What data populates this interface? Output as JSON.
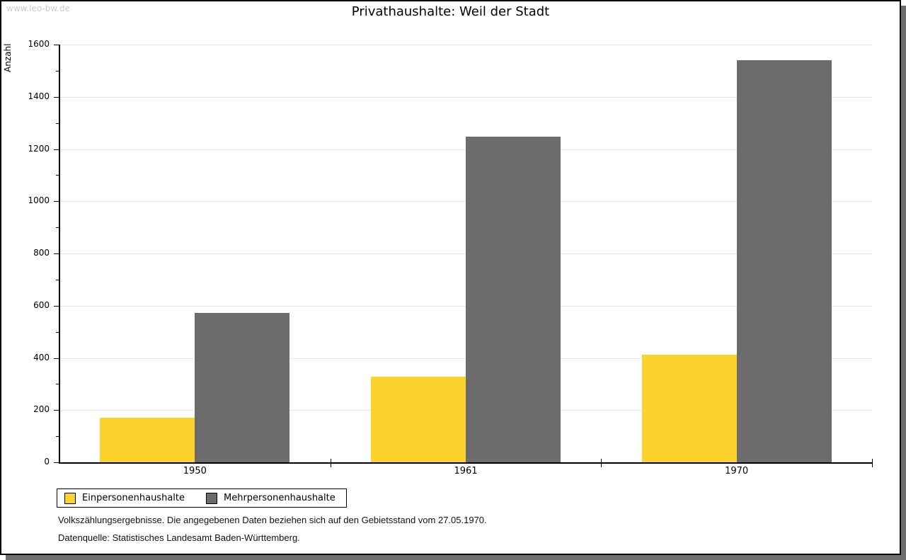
{
  "watermark": "www.leo-bw.de",
  "chart_data": {
    "type": "bar",
    "title": "Privathaushalte: Weil der Stadt",
    "xlabel": "",
    "ylabel": "Anzahl",
    "ylim": [
      0,
      1600
    ],
    "yticks": [
      0,
      200,
      400,
      600,
      800,
      1000,
      1200,
      1400,
      1600
    ],
    "ytick_step": 200,
    "ytick_minor_step": 100,
    "grid": "horizontal",
    "legend_position": "bottom-left",
    "categories": [
      "1950",
      "1961",
      "1970"
    ],
    "series": [
      {
        "name": "Einpersonenhaushalte",
        "color": "#FCD32D",
        "values": [
          170,
          328,
          413
        ]
      },
      {
        "name": "Mehrpersonenhaushalte",
        "color": "#6C6C6C",
        "values": [
          572,
          1247,
          1541
        ]
      }
    ],
    "colors": {
      "gridline": "#E6E6E6",
      "axis": "#000000"
    }
  },
  "footnotes": {
    "line1": "Volkszählungsergebnisse. Die angegebenen Daten beziehen sich auf den Gebietsstand vom 27.05.1970.",
    "line2": "Datenquelle: Statistisches Landesamt Baden-Württemberg."
  }
}
